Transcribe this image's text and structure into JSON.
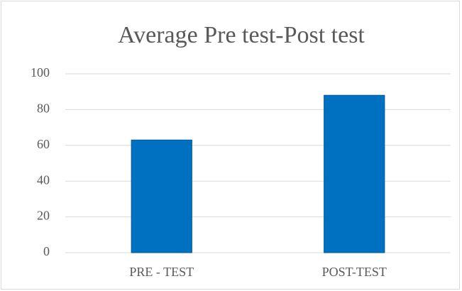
{
  "chart_data": {
    "type": "bar",
    "title": "Average Pre test-Post test",
    "categories": [
      "PRE - TEST",
      "POST-TEST"
    ],
    "values": [
      63,
      88
    ],
    "color": "#0070c0",
    "ylim": [
      0,
      100
    ],
    "yticks": [
      0,
      20,
      40,
      60,
      80,
      100
    ],
    "grid": true
  }
}
